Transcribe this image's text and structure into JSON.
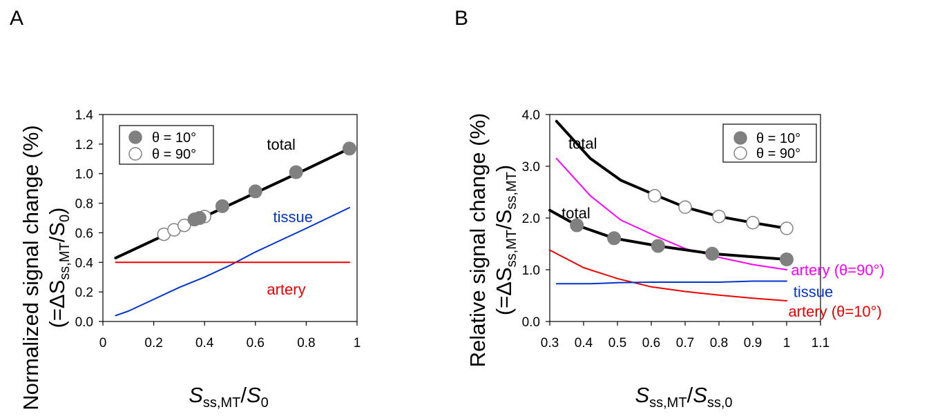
{
  "colors": {
    "black": "#000000",
    "tissue": "#0033cc",
    "artery": "#ee0000",
    "artery90": "#ff00ff",
    "marker_fill": "#808080",
    "marker_edge": "#808080"
  },
  "chart_data": [
    {
      "panel_label": "A",
      "type": "line",
      "xlim": [
        0,
        1
      ],
      "ylim": [
        0,
        1.4
      ],
      "x_ticks": [
        "0",
        "0.2",
        "0.4",
        "0.6",
        "0.8",
        "1"
      ],
      "x_tick_values": [
        0,
        0.2,
        0.4,
        0.6,
        0.8,
        1
      ],
      "y_ticks": [
        "0.0",
        "0.2",
        "0.4",
        "0.6",
        "0.8",
        "1.0",
        "1.2",
        "1.4"
      ],
      "y_tick_values": [
        0,
        0.2,
        0.4,
        0.6,
        0.8,
        1.0,
        1.2,
        1.4
      ],
      "xlabel": {
        "main": "S",
        "sub": "ss,MT",
        "slash": "/",
        "main2": "S",
        "sub2": "0"
      },
      "ylabel_line1": "Normalized signal change (%)",
      "ylabel_line2": {
        "open": "(=ΔS",
        "sub": "ss,MT",
        "slash": "/S",
        "sub2": "0",
        "close": ")"
      },
      "legend": [
        {
          "label": "θ = 10°",
          "marker": "filled"
        },
        {
          "label": "θ = 90°",
          "marker": "open"
        }
      ],
      "series": [
        {
          "name": "total",
          "color_key": "black",
          "width": 4,
          "x": [
            0.05,
            0.25,
            0.4,
            0.6,
            0.8,
            0.97
          ],
          "y": [
            0.43,
            0.59,
            0.71,
            0.87,
            1.03,
            1.17
          ]
        },
        {
          "name": "tissue",
          "color_key": "tissue",
          "width": 2,
          "x": [
            0.05,
            0.1,
            0.2,
            0.3,
            0.4,
            0.5,
            0.6,
            0.7,
            0.8,
            0.97
          ],
          "y": [
            0.04,
            0.07,
            0.15,
            0.23,
            0.3,
            0.38,
            0.47,
            0.55,
            0.63,
            0.77
          ]
        },
        {
          "name": "artery",
          "color_key": "artery",
          "width": 2,
          "x": [
            0.05,
            0.97
          ],
          "y": [
            0.4,
            0.4
          ]
        }
      ],
      "points_filled": {
        "x": [
          0.36,
          0.38,
          0.47,
          0.6,
          0.76,
          0.97
        ],
        "y": [
          0.69,
          0.7,
          0.78,
          0.88,
          1.01,
          1.17
        ]
      },
      "points_open": {
        "x": [
          0.24,
          0.28,
          0.32,
          0.36,
          0.4
        ],
        "y": [
          0.59,
          0.62,
          0.65,
          0.69,
          0.71
        ]
      },
      "annotations": [
        {
          "text": "total",
          "color_key": "black",
          "x": 0.645,
          "y": 1.2
        },
        {
          "text": "tissue",
          "color_key": "tissue",
          "x": 0.67,
          "y": 0.71
        },
        {
          "text": "artery",
          "color_key": "artery",
          "x": 0.645,
          "y": 0.22
        }
      ]
    },
    {
      "panel_label": "B",
      "type": "line",
      "xlim": [
        0.3,
        1.1
      ],
      "ylim": [
        0,
        4.0
      ],
      "x_ticks": [
        "0.3",
        "0.4",
        "0.5",
        "0.6",
        "0.7",
        "0.8",
        "0.9",
        "1",
        "1.1"
      ],
      "x_tick_values": [
        0.3,
        0.4,
        0.5,
        0.6,
        0.7,
        0.8,
        0.9,
        1.0,
        1.1
      ],
      "y_ticks": [
        "0.0",
        "1.0",
        "2.0",
        "3.0",
        "4.0"
      ],
      "y_tick_values": [
        0,
        1,
        2,
        3,
        4
      ],
      "xlabel": {
        "main": "S",
        "sub": "ss,MT",
        "slash": "/",
        "main2": "S",
        "sub2": "ss,0"
      },
      "ylabel_line1": "Relative signal change (%)",
      "ylabel_line2": {
        "open": "(=ΔS",
        "sub": "ss,MT",
        "slash": "/S",
        "sub2": "ss,MT",
        "close": ")"
      },
      "legend": [
        {
          "label": "θ = 10°",
          "marker": "filled"
        },
        {
          "label": "θ = 90°",
          "marker": "open"
        }
      ],
      "series": [
        {
          "name": "total (θ = 90°)",
          "color_key": "black",
          "width": 4,
          "x": [
            0.32,
            0.42,
            0.51,
            0.61,
            0.7,
            0.8,
            0.9,
            1.0
          ],
          "y": [
            3.87,
            3.15,
            2.73,
            2.45,
            2.21,
            2.03,
            1.91,
            1.8
          ]
        },
        {
          "name": "artery (θ=90°)",
          "color_key": "artery90",
          "width": 2,
          "x": [
            0.32,
            0.42,
            0.51,
            0.61,
            0.7,
            0.8,
            0.9,
            1.0
          ],
          "y": [
            3.15,
            2.43,
            1.96,
            1.66,
            1.41,
            1.24,
            1.1,
            1.0
          ]
        },
        {
          "name": "total (θ = 10°)",
          "color_key": "black",
          "width": 4,
          "x": [
            0.3,
            0.38,
            0.49,
            0.62,
            0.78,
            0.9,
            1.0
          ],
          "y": [
            2.15,
            1.86,
            1.61,
            1.46,
            1.31,
            1.25,
            1.2
          ]
        },
        {
          "name": "artery (θ=10°)",
          "color_key": "artery",
          "width": 2,
          "x": [
            0.3,
            0.4,
            0.5,
            0.6,
            0.7,
            0.8,
            0.9,
            1.0
          ],
          "y": [
            1.38,
            1.04,
            0.83,
            0.67,
            0.58,
            0.51,
            0.45,
            0.4
          ]
        },
        {
          "name": "tissue",
          "color_key": "tissue",
          "width": 2,
          "x": [
            0.32,
            0.42,
            0.5,
            0.6,
            0.7,
            0.8,
            0.9,
            1.0
          ],
          "y": [
            0.73,
            0.73,
            0.75,
            0.76,
            0.76,
            0.76,
            0.78,
            0.78
          ]
        }
      ],
      "points_filled": {
        "x": [
          0.38,
          0.49,
          0.62,
          0.78,
          1.0
        ],
        "y": [
          1.86,
          1.61,
          1.46,
          1.31,
          1.2
        ]
      },
      "points_open": {
        "x": [
          0.61,
          0.7,
          0.8,
          0.9,
          1.0
        ],
        "y": [
          2.43,
          2.21,
          2.03,
          1.91,
          1.8
        ]
      },
      "annotations": [
        {
          "text": "total",
          "color_key": "black",
          "x": 0.355,
          "y": 3.45
        },
        {
          "text": "total",
          "color_key": "black",
          "x": 0.335,
          "y": 2.1
        },
        {
          "text": "artery (θ=90°)",
          "color_key": "artery90",
          "x": 1.013,
          "y": 1.0
        },
        {
          "text": "tissue",
          "color_key": "tissue",
          "x": 1.02,
          "y": 0.58
        },
        {
          "text": "artery (θ=10°)",
          "color_key": "artery",
          "x": 1.005,
          "y": 0.2
        }
      ]
    }
  ]
}
